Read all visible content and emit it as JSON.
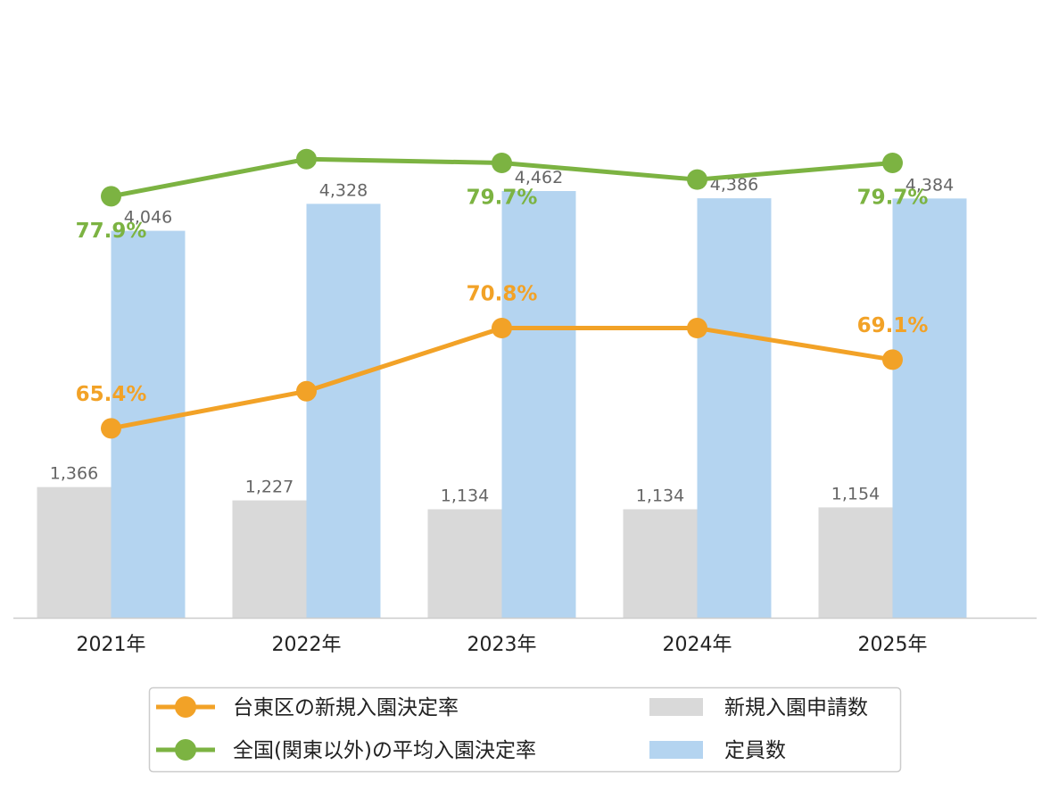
{
  "chart_data": {
    "type": "bar",
    "categories": [
      "2021年",
      "2022年",
      "2023年",
      "2024年",
      "2025年"
    ],
    "bar_series": [
      {
        "name": "新規入園申請数",
        "color": "#d9d9d9",
        "values": [
          1366,
          1227,
          1134,
          1134,
          1154
        ],
        "labels": [
          "1,366",
          "1,227",
          "1,134",
          "1,134",
          "1,154"
        ]
      },
      {
        "name": "定員数",
        "color": "#b4d4f0",
        "values": [
          4046,
          4328,
          4462,
          4386,
          4384
        ],
        "labels": [
          "4,046",
          "4,328",
          "4,462",
          "4,386",
          "4,384"
        ]
      }
    ],
    "line_series": [
      {
        "name": "台東区の新規入園決定率",
        "color": "#f2a227",
        "values": [
          65.4,
          67.4,
          70.8,
          70.8,
          69.1
        ],
        "labels": [
          "65.4%",
          "",
          "70.8%",
          "",
          "69.1%"
        ]
      },
      {
        "name": "全国(関東以外)の平均入園決定率",
        "color": "#7cb342",
        "values": [
          77.9,
          79.9,
          79.7,
          78.8,
          79.7
        ],
        "labels": [
          "77.9%",
          "",
          "79.7%",
          "",
          "79.7%"
        ]
      }
    ],
    "legend": {
      "placement": "bottom",
      "items": [
        {
          "label": "台東区の新規入園決定率",
          "kind": "line",
          "color": "#f2a227"
        },
        {
          "label": "新規入園申請数",
          "kind": "bar",
          "color": "#d9d9d9"
        },
        {
          "label": "全国(関東以外)の平均入園決定率",
          "kind": "line",
          "color": "#7cb342"
        },
        {
          "label": "定員数",
          "kind": "bar",
          "color": "#b4d4f0"
        }
      ]
    },
    "bar_axis": {
      "min": 0,
      "max": 4462
    },
    "line_axis": {
      "min": 55.2,
      "max": 85.3
    },
    "grid": false,
    "title": "",
    "xlabel": "",
    "ylabel": ""
  }
}
